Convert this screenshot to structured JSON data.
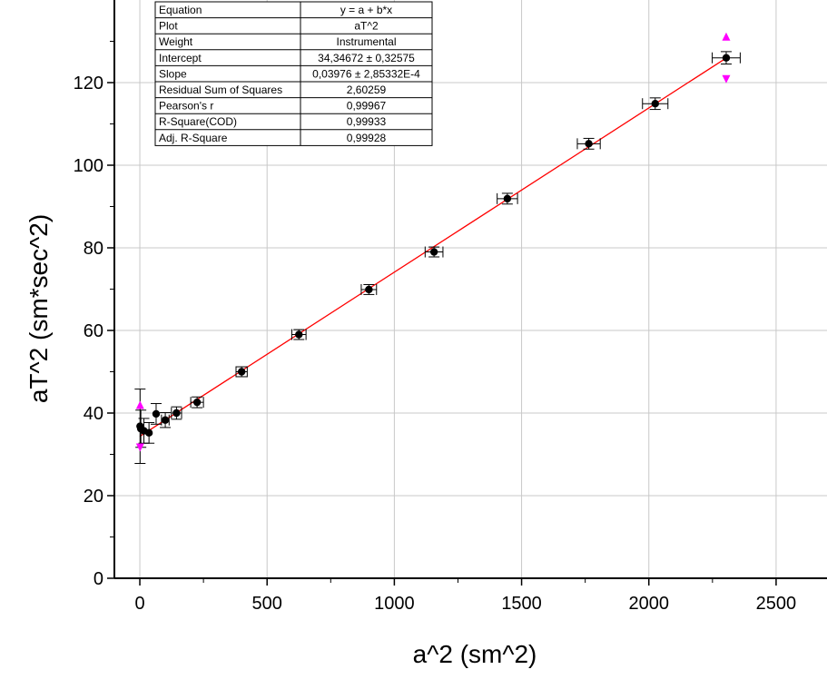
{
  "chart_data": {
    "type": "scatter",
    "title": "",
    "xlabel": "a^2 (sm^2)",
    "ylabel": "aT^2 (sm*sec^2)",
    "xlim": [
      -100,
      2700
    ],
    "ylim": [
      0,
      140
    ],
    "x_ticks": [
      0,
      500,
      1000,
      1500,
      2000,
      2500
    ],
    "x_tick_labels": [
      "0",
      "500",
      "1000",
      "1500",
      "2000",
      "2500"
    ],
    "y_ticks": [
      0,
      20,
      40,
      60,
      80,
      100,
      120
    ],
    "y_tick_labels": [
      "0",
      "20",
      "40",
      "60",
      "80",
      "100",
      "120"
    ],
    "grid": true,
    "series": [
      {
        "x": [
          1,
          4,
          16,
          36,
          64,
          100,
          144,
          225,
          400,
          625,
          900,
          1156,
          1444,
          1764,
          2025,
          2304
        ],
        "y": [
          36.8,
          36.2,
          35.7,
          35.2,
          39.8,
          38.3,
          40.0,
          42.6,
          50.0,
          59.0,
          69.9,
          79.0,
          91.9,
          105.2,
          114.9,
          126.0
        ],
        "xerr": [
          0,
          0,
          0,
          0,
          0,
          15,
          20,
          25,
          22,
          28,
          30,
          35,
          40,
          45,
          50,
          55
        ],
        "yerr": [
          9.0,
          4.5,
          3.0,
          2.5,
          2.5,
          1.8,
          1.5,
          1.3,
          1.2,
          1.2,
          1.2,
          1.2,
          1.3,
          1.3,
          1.4,
          1.5
        ],
        "marker_color": "#000000",
        "error_bar_color": "#000000"
      }
    ],
    "fit_line": {
      "intercept": 34.34672,
      "slope": 0.03976,
      "x_range": [
        0,
        2304
      ],
      "color": "#ff0000"
    },
    "highlight_markers": [
      {
        "x": 2304,
        "y": 126.0,
        "color": "#ff00ff"
      },
      {
        "x": 1,
        "y": 36.8,
        "color": "#ff00ff"
      }
    ],
    "fit_table": [
      {
        "label": "Equation",
        "value": "y = a + b*x"
      },
      {
        "label": "Plot",
        "value": "aT^2"
      },
      {
        "label": "Weight",
        "value": "Instrumental"
      },
      {
        "label": "Intercept",
        "value": "34,34672 ± 0,32575"
      },
      {
        "label": "Slope",
        "value": "0,03976 ± 2,85332E-4"
      },
      {
        "label": "Residual Sum of Squares",
        "value": "2,60259"
      },
      {
        "label": "Pearson's r",
        "value": "0,99967"
      },
      {
        "label": "R-Square(COD)",
        "value": "0,99933"
      },
      {
        "label": "Adj. R-Square",
        "value": "0,99928"
      }
    ]
  }
}
